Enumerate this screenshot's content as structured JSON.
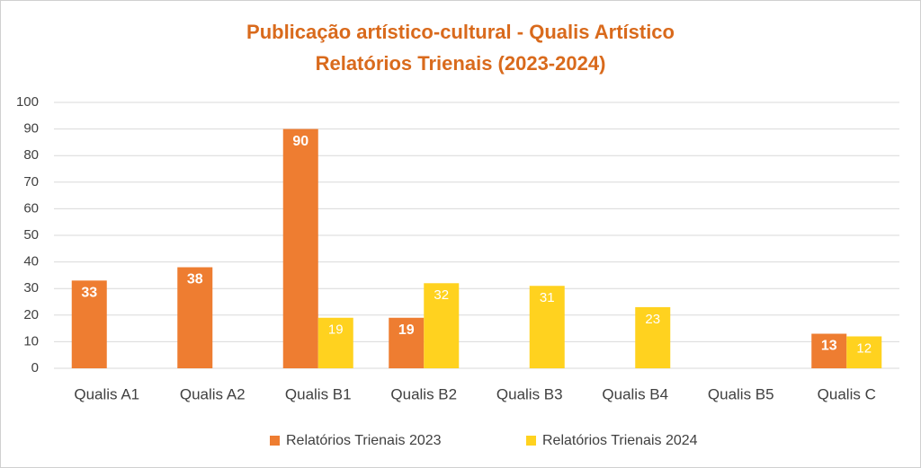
{
  "chart_data": {
    "type": "bar",
    "title": "Publicação artístico-cultural - Qualis Artístico",
    "subtitle": "Relatórios Trienais (2023-2024)",
    "categories": [
      "Qualis A1",
      "Qualis A2",
      "Qualis B1",
      "Qualis B2",
      "Qualis B3",
      "Qualis B4",
      "Qualis B5",
      "Qualis C"
    ],
    "series": [
      {
        "name": "Relatórios Trienais 2023",
        "color": "#ee7d31",
        "values": [
          33,
          38,
          90,
          19,
          null,
          null,
          null,
          13
        ]
      },
      {
        "name": "Relatórios Trienais 2024",
        "color": "#ffd21f",
        "values": [
          null,
          null,
          19,
          32,
          31,
          23,
          null,
          12
        ]
      }
    ],
    "ylim": [
      0,
      100
    ],
    "yticks": [
      0,
      10,
      20,
      30,
      40,
      50,
      60,
      70,
      80,
      90,
      100
    ],
    "grid": true,
    "legend": "bottom"
  }
}
